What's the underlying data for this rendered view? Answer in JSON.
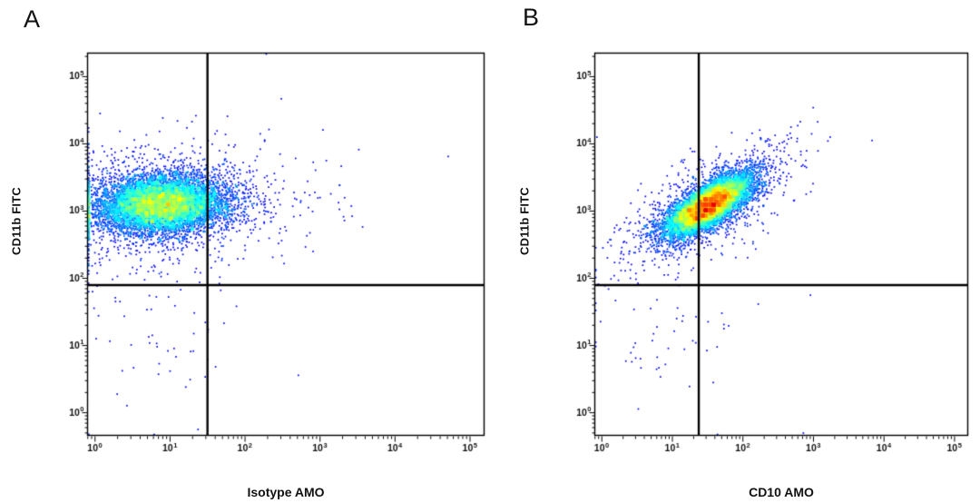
{
  "figure": {
    "type": "flow-cytometry-dual-panel",
    "background_color": "#ffffff"
  },
  "chart_data": [
    {
      "type": "scatter",
      "subtype": "flow-cytometry-density-dot-plot",
      "panel_label": "A",
      "xlabel": "Isotype AMO",
      "ylabel": "CD11b FITC",
      "x_scale": "log10",
      "y_scale": "log10",
      "x_range_log10": [
        -0.1,
        5.2
      ],
      "y_range_log10": [
        -0.35,
        5.35
      ],
      "tick_exponents": [
        0,
        1,
        2,
        3,
        4,
        5
      ],
      "tick_labels": [
        "10^0",
        "10^1",
        "10^2",
        "10^3",
        "10^4",
        "10^5"
      ],
      "grid": false,
      "legend": false,
      "quadrant_gate": {
        "x": 32,
        "y": 78
      },
      "gate_color": "#000000",
      "colormap": "jet-density",
      "colormap_cap": 0.68,
      "seed": 7,
      "point_count_total": 9075,
      "clusters": [
        {
          "name": "cd11b-positive-isotype-negative",
          "n": 9000,
          "center_log10": [
            0.9,
            3.1
          ],
          "sigma_log10": [
            0.42,
            0.21
          ],
          "rho": 0.1,
          "peak_color": "#ffff00"
        },
        {
          "name": "debris-double-negative",
          "n": 55,
          "center_log10": [
            0.8,
            1.1
          ],
          "sigma_log10": [
            0.5,
            0.65
          ],
          "rho": 0.0,
          "peak_color": "#2244cc"
        },
        {
          "name": "sparse-right-of-gate",
          "n": 20,
          "center_log10": [
            2.3,
            3.2
          ],
          "sigma_log10": [
            0.5,
            0.14
          ],
          "rho": 0.0,
          "peak_color": "#2244cc"
        }
      ]
    },
    {
      "type": "scatter",
      "subtype": "flow-cytometry-density-dot-plot",
      "panel_label": "B",
      "xlabel": "CD10 AMO",
      "ylabel": "CD11b FITC",
      "x_scale": "log10",
      "y_scale": "log10",
      "x_range_log10": [
        -0.1,
        5.2
      ],
      "y_range_log10": [
        -0.35,
        5.35
      ],
      "tick_exponents": [
        0,
        1,
        2,
        3,
        4,
        5
      ],
      "tick_labels": [
        "10^0",
        "10^1",
        "10^2",
        "10^3",
        "10^4",
        "10^5"
      ],
      "grid": false,
      "legend": false,
      "quadrant_gate": {
        "x": 24,
        "y": 78
      },
      "gate_color": "#000000",
      "colormap": "jet-density",
      "colormap_cap": 0.9,
      "seed": 13,
      "point_count_total": 9055,
      "clusters": [
        {
          "name": "cd10-cd11b-double-positive",
          "n": 9000,
          "center_log10": [
            1.52,
            3.08
          ],
          "sigma_log10": [
            0.3,
            0.22
          ],
          "rho": 0.72,
          "peak_color": "#ff2200"
        },
        {
          "name": "debris-double-negative",
          "n": 55,
          "center_log10": [
            0.9,
            1.2
          ],
          "sigma_log10": [
            0.5,
            0.6
          ],
          "rho": 0.0,
          "peak_color": "#2244cc"
        }
      ]
    }
  ]
}
